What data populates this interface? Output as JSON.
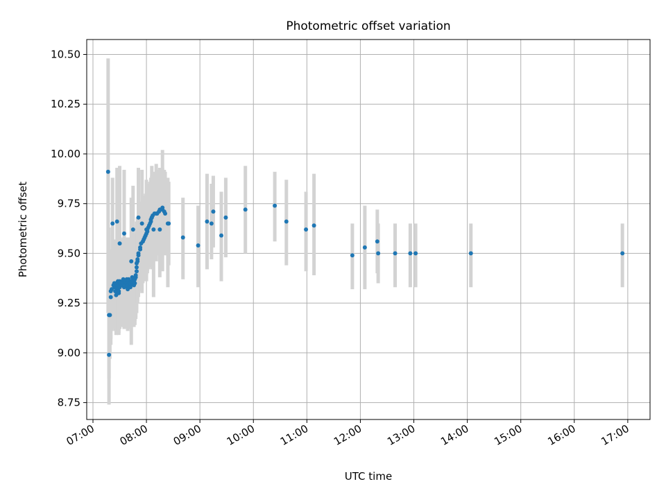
{
  "chart_data": {
    "type": "scatter",
    "title": "Photometric offset variation",
    "xlabel": "UTC time",
    "ylabel": "Photometric offset",
    "xlim": [
      "06:53",
      "17:25"
    ],
    "ylim": [
      8.665,
      10.575
    ],
    "x_ticks": [
      "07:00",
      "08:00",
      "09:00",
      "10:00",
      "11:00",
      "12:00",
      "13:00",
      "14:00",
      "15:00",
      "16:00",
      "17:00"
    ],
    "y_ticks": [
      "8.75",
      "9.00",
      "9.25",
      "9.50",
      "9.75",
      "10.00",
      "10.25",
      "10.50"
    ],
    "grid": true,
    "colors": {
      "points": "#1f77b4",
      "error_bars": "#d3d3d3",
      "grid": "#b0b0b0"
    },
    "series": [
      {
        "x": [
          "07:17",
          "07:18",
          "07:18",
          "07:19",
          "07:20",
          "07:20",
          "07:21",
          "07:23",
          "07:24",
          "07:24",
          "07:24",
          "07:25",
          "07:25",
          "07:26",
          "07:26",
          "07:26",
          "07:27",
          "07:27",
          "07:27",
          "07:28",
          "07:28",
          "07:28",
          "07:28",
          "07:29",
          "07:29",
          "07:29",
          "07:30",
          "07:30",
          "07:30",
          "07:31",
          "07:32",
          "07:33",
          "07:34",
          "07:34",
          "07:35",
          "07:37",
          "07:37",
          "07:37",
          "07:37",
          "07:38",
          "07:38",
          "07:39",
          "07:39",
          "07:39",
          "07:40",
          "07:40",
          "07:41",
          "07:42",
          "07:42",
          "07:42",
          "07:43",
          "07:44",
          "07:45",
          "07:45",
          "07:45",
          "07:46",
          "07:46",
          "07:47",
          "07:47",
          "07:48",
          "07:48",
          "07:49",
          "07:49",
          "07:49",
          "07:50",
          "07:50",
          "07:51",
          "07:51",
          "07:53",
          "07:53",
          "07:54",
          "07:56",
          "07:57",
          "07:58",
          "07:59",
          "08:00",
          "08:01",
          "08:01",
          "08:02",
          "08:03",
          "08:04",
          "08:05",
          "08:05",
          "08:06",
          "08:07",
          "08:09",
          "08:12",
          "08:14",
          "08:15",
          "08:17",
          "08:18",
          "08:20",
          "08:21",
          "08:25",
          "08:41",
          "08:58",
          "09:08",
          "09:13",
          "09:15",
          "09:24",
          "09:29",
          "09:51",
          "10:24",
          "10:37",
          "10:59",
          "11:08",
          "11:51",
          "12:05",
          "12:19",
          "12:20",
          "12:39",
          "12:56",
          "13:02",
          "14:04",
          "16:54",
          "07:22",
          "07:27",
          "07:30",
          "07:35",
          "07:43",
          "07:45",
          "07:51",
          "07:55",
          "08:00",
          "08:06",
          "08:08",
          "08:11",
          "08:15",
          "08:18",
          "08:24"
        ],
        "y": [
          9.91,
          8.99,
          9.19,
          9.19,
          9.28,
          9.31,
          9.32,
          9.34,
          9.35,
          9.33,
          9.35,
          9.34,
          9.31,
          9.35,
          9.29,
          9.33,
          9.32,
          9.3,
          9.34,
          9.36,
          9.35,
          9.32,
          9.33,
          9.31,
          9.34,
          9.3,
          9.35,
          9.33,
          9.36,
          9.35,
          9.34,
          9.36,
          9.37,
          9.35,
          9.33,
          9.34,
          9.36,
          9.35,
          9.34,
          9.37,
          9.35,
          9.33,
          9.32,
          9.34,
          9.36,
          9.37,
          9.35,
          9.34,
          9.33,
          9.35,
          9.36,
          9.38,
          9.37,
          9.36,
          9.35,
          9.34,
          9.36,
          9.35,
          9.37,
          9.38,
          9.39,
          9.41,
          9.43,
          9.45,
          9.46,
          9.47,
          9.49,
          9.5,
          9.52,
          9.53,
          9.55,
          9.56,
          9.57,
          9.58,
          9.59,
          9.6,
          9.61,
          9.62,
          9.63,
          9.64,
          9.65,
          9.66,
          9.67,
          9.68,
          9.69,
          9.7,
          9.7,
          9.71,
          9.72,
          9.72,
          9.72,
          9.71,
          9.7,
          9.65,
          9.58,
          9.54,
          9.66,
          9.65,
          9.71,
          9.59,
          9.68,
          9.72,
          9.74,
          9.66,
          9.62,
          9.64,
          9.49,
          9.53,
          9.56,
          9.5,
          9.5,
          9.5,
          9.5,
          9.5,
          9.5,
          9.65,
          9.66,
          9.55,
          9.6,
          9.46,
          9.62,
          9.68,
          9.65,
          9.62,
          9.68,
          9.62,
          9.7,
          9.62,
          9.73,
          9.65
        ],
        "yerr_low": [
          9.2,
          8.74,
          8.87,
          8.97,
          9.04,
          9.07,
          9.11,
          9.13,
          9.14,
          9.12,
          9.13,
          9.13,
          9.11,
          9.14,
          9.09,
          9.12,
          9.11,
          9.09,
          9.13,
          9.15,
          9.14,
          9.11,
          9.12,
          9.1,
          9.13,
          9.09,
          9.14,
          9.12,
          9.15,
          9.14,
          9.13,
          9.15,
          9.16,
          9.14,
          9.12,
          9.13,
          9.15,
          9.14,
          9.13,
          9.16,
          9.14,
          9.12,
          9.11,
          9.13,
          9.15,
          9.16,
          9.14,
          9.13,
          9.12,
          9.14,
          9.15,
          9.17,
          9.16,
          9.15,
          9.14,
          9.13,
          9.15,
          9.14,
          9.16,
          9.17,
          9.18,
          9.2,
          9.22,
          9.24,
          9.25,
          9.26,
          9.28,
          9.29,
          9.31,
          9.32,
          9.34,
          9.35,
          9.36,
          9.37,
          9.38,
          9.39,
          9.4,
          9.41,
          9.42,
          9.43,
          9.44,
          9.45,
          9.46,
          9.47,
          9.48,
          9.49,
          9.49,
          9.5,
          9.51,
          9.51,
          9.51,
          9.5,
          9.49,
          9.44,
          9.37,
          9.33,
          9.42,
          9.47,
          9.53,
          9.36,
          9.48,
          9.5,
          9.56,
          9.44,
          9.41,
          9.39,
          9.32,
          9.32,
          9.4,
          9.35,
          9.33,
          9.33,
          9.33,
          9.33,
          9.33,
          9.42,
          9.3,
          9.15,
          9.17,
          9.04,
          9.33,
          9.42,
          9.3,
          9.36,
          9.42,
          9.28,
          9.46,
          9.38,
          9.41,
          9.33
        ],
        "yerr_high": [
          10.48,
          9.59,
          9.63,
          9.47,
          9.48,
          9.51,
          9.52,
          9.54,
          9.56,
          9.55,
          9.57,
          9.56,
          9.52,
          9.56,
          9.5,
          9.54,
          9.53,
          9.51,
          9.55,
          9.57,
          9.56,
          9.53,
          9.54,
          9.52,
          9.55,
          9.51,
          9.56,
          9.54,
          9.57,
          9.56,
          9.55,
          9.57,
          9.58,
          9.56,
          9.54,
          9.55,
          9.57,
          9.56,
          9.55,
          9.58,
          9.56,
          9.54,
          9.53,
          9.55,
          9.57,
          9.58,
          9.56,
          9.55,
          9.54,
          9.56,
          9.57,
          9.59,
          9.58,
          9.57,
          9.56,
          9.55,
          9.57,
          9.56,
          9.58,
          9.59,
          9.6,
          9.62,
          9.64,
          9.66,
          9.67,
          9.68,
          9.7,
          9.71,
          9.73,
          9.74,
          9.76,
          9.77,
          9.78,
          9.79,
          9.8,
          9.81,
          9.82,
          9.83,
          9.84,
          9.85,
          9.86,
          9.87,
          9.88,
          9.89,
          9.9,
          9.91,
          9.91,
          9.92,
          9.93,
          9.93,
          9.93,
          9.92,
          9.91,
          9.86,
          9.78,
          9.74,
          9.9,
          9.85,
          9.89,
          9.81,
          9.88,
          9.94,
          9.91,
          9.87,
          9.81,
          9.9,
          9.65,
          9.74,
          9.72,
          9.65,
          9.65,
          9.65,
          9.65,
          9.65,
          9.65,
          9.88,
          9.93,
          9.94,
          9.92,
          9.78,
          9.84,
          9.93,
          9.92,
          9.87,
          9.94,
          9.88,
          9.95,
          9.89,
          10.02,
          9.88
        ]
      }
    ]
  }
}
